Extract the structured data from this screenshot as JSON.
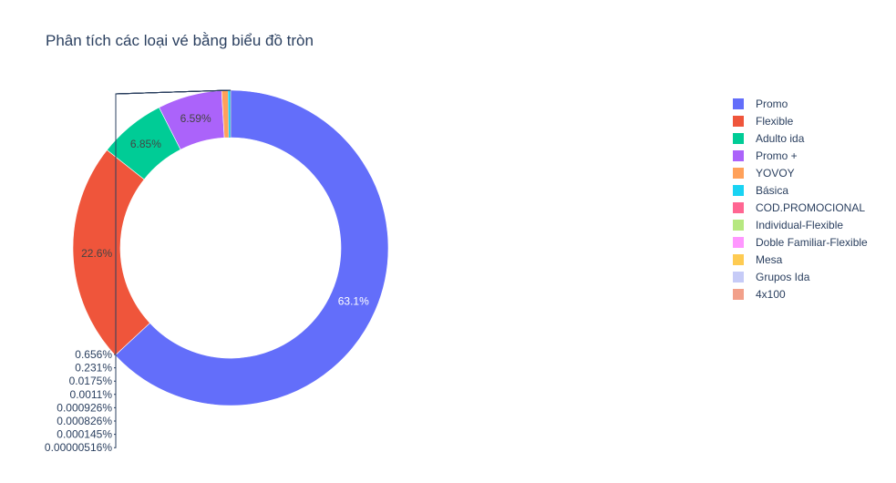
{
  "chart_data": {
    "type": "pie",
    "hole": true,
    "title": "Phân tích các loại vé bằng biểu đồ tròn",
    "legend_placement": "right",
    "slices": [
      {
        "name": "Promo",
        "percent": 63.1,
        "label": "63.1%",
        "color": "#636efa",
        "label_position": "inside",
        "label_color": "#ffffff"
      },
      {
        "name": "Flexible",
        "percent": 22.6,
        "label": "22.6%",
        "color": "#ef553b",
        "label_position": "inside",
        "label_color": "#444444"
      },
      {
        "name": "Adulto ida",
        "percent": 6.85,
        "label": "6.85%",
        "color": "#00cc96",
        "label_position": "inside",
        "label_color": "#444444"
      },
      {
        "name": "Promo +",
        "percent": 6.59,
        "label": "6.59%",
        "color": "#ab63fa",
        "label_position": "inside",
        "label_color": "#444444"
      },
      {
        "name": "YOVOY",
        "percent": 0.656,
        "label": "0.656%",
        "color": "#ffa15a",
        "label_position": "outside"
      },
      {
        "name": "Básica",
        "percent": 0.231,
        "label": "0.231%",
        "color": "#19d3f3",
        "label_position": "outside"
      },
      {
        "name": "COD.PROMOCIONAL",
        "percent": 0.0175,
        "label": "0.0175%",
        "color": "#ff6692",
        "label_position": "outside"
      },
      {
        "name": "Individual-Flexible",
        "percent": 0.0011,
        "label": "0.0011%",
        "color": "#b6e880",
        "label_position": "outside"
      },
      {
        "name": "Doble Familiar-Flexible",
        "percent": 0.000926,
        "label": "0.000926%",
        "color": "#ff97ff",
        "label_position": "outside"
      },
      {
        "name": "Mesa",
        "percent": 0.000826,
        "label": "0.000826%",
        "color": "#fecb52",
        "label_position": "outside"
      },
      {
        "name": "Grupos Ida",
        "percent": 0.000145,
        "label": "0.000145%",
        "color": "#c6cbf7",
        "label_position": "outside"
      },
      {
        "name": "4x100",
        "percent": 5.16e-06,
        "label": "0.00000516%",
        "color": "#f2a08a",
        "label_position": "outside"
      }
    ]
  }
}
